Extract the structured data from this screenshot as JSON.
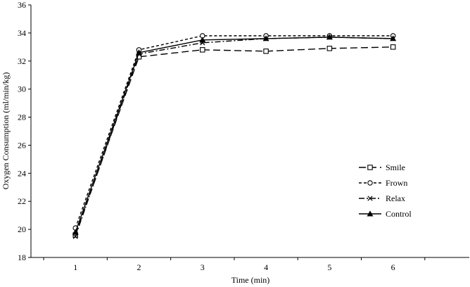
{
  "chart_data": {
    "type": "line",
    "title": "",
    "xlabel": "Time (min)",
    "ylabel": "Oxygen Consumption (ml/min/kg)",
    "x": [
      1,
      2,
      3,
      4,
      5,
      6
    ],
    "xlim": [
      0.3,
      7.2
    ],
    "ylim": [
      18,
      36
    ],
    "yticks": [
      18,
      20,
      22,
      24,
      26,
      28,
      30,
      32,
      34,
      36
    ],
    "xticks": [
      1,
      2,
      3,
      4,
      5,
      6
    ],
    "grid": false,
    "legend_position": "right",
    "series": [
      {
        "name": "Smile",
        "marker": "square",
        "dash": "long-dash",
        "values": [
          19.6,
          32.3,
          32.8,
          32.7,
          32.9,
          33.0
        ]
      },
      {
        "name": "Frown",
        "marker": "circle",
        "dash": "short-dash",
        "values": [
          20.1,
          32.8,
          33.8,
          33.8,
          33.8,
          33.8
        ]
      },
      {
        "name": "Relax",
        "marker": "x",
        "dash": "dash-dot",
        "values": [
          19.5,
          32.5,
          33.3,
          33.6,
          33.7,
          33.6
        ]
      },
      {
        "name": "Control",
        "marker": "triangle",
        "dash": "solid",
        "values": [
          19.8,
          32.6,
          33.5,
          33.6,
          33.7,
          33.6
        ]
      }
    ]
  }
}
